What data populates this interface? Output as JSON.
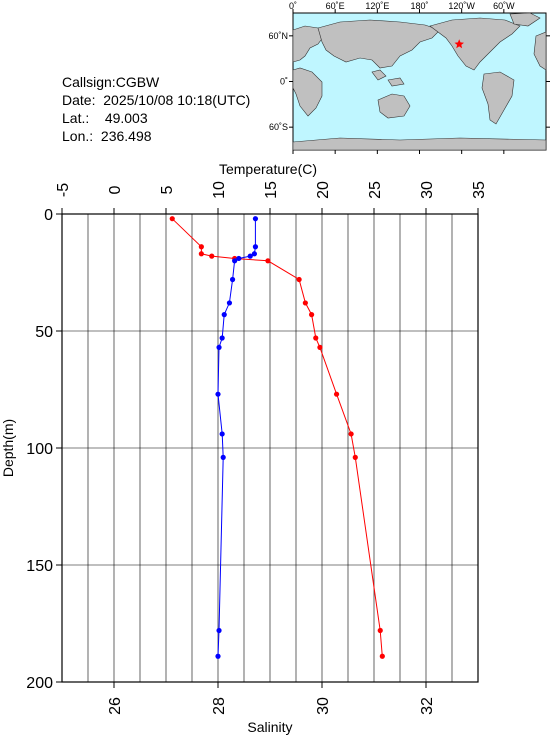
{
  "station": {
    "callsign_label": "Callsign:",
    "callsign": "CGBW",
    "date_label": "Date:",
    "date": "2025/10/08 10:18(UTC)",
    "lat_label": "Lat.:",
    "lat": "49.003",
    "lon_label": "Lon.:",
    "lon": "236.498"
  },
  "map": {
    "lon_ticks": [
      "0˚",
      "60˚E",
      "120˚E",
      "180˚",
      "120˚W",
      "60˚W"
    ],
    "lat_ticks": [
      "60˚N",
      "0˚",
      "60˚S"
    ],
    "marker": {
      "lat": 49.003,
      "lon": 236.498,
      "shape": "star"
    },
    "colors": {
      "ocean": "#bff6ff",
      "land": "#c0c0c0",
      "marker": "#ff0000"
    }
  },
  "chart_data": {
    "type": "line",
    "ylabel": "Depth(m)",
    "ylim": [
      0,
      200
    ],
    "y_ticks": [
      0,
      50,
      100,
      150,
      200
    ],
    "grid": true,
    "x_top": {
      "label": "Temperature(C)",
      "range": [
        -5,
        35
      ],
      "ticks": [
        -5,
        0,
        5,
        10,
        15,
        20,
        25,
        30,
        35
      ]
    },
    "x_bottom": {
      "label": "Salinity",
      "range": [
        25,
        33
      ],
      "ticks": [
        26,
        28,
        30,
        32
      ]
    },
    "series": [
      {
        "color": "#ff0000",
        "axis": "top",
        "points": [
          {
            "x": 5.6,
            "y": 2
          },
          {
            "x": 8.4,
            "y": 14
          },
          {
            "x": 8.4,
            "y": 17
          },
          {
            "x": 9.4,
            "y": 18
          },
          {
            "x": 11.6,
            "y": 19
          },
          {
            "x": 14.8,
            "y": 20
          },
          {
            "x": 17.8,
            "y": 28
          },
          {
            "x": 18.4,
            "y": 38
          },
          {
            "x": 19.0,
            "y": 43
          },
          {
            "x": 19.4,
            "y": 53
          },
          {
            "x": 19.8,
            "y": 57
          },
          {
            "x": 21.4,
            "y": 77
          },
          {
            "x": 22.8,
            "y": 94
          },
          {
            "x": 23.2,
            "y": 104
          },
          {
            "x": 25.6,
            "y": 178
          },
          {
            "x": 25.8,
            "y": 189
          }
        ]
      },
      {
        "color": "#0000ff",
        "axis": "bottom",
        "points": [
          {
            "x": 28.72,
            "y": 2
          },
          {
            "x": 28.72,
            "y": 14
          },
          {
            "x": 28.7,
            "y": 17
          },
          {
            "x": 28.62,
            "y": 18
          },
          {
            "x": 28.4,
            "y": 19
          },
          {
            "x": 28.32,
            "y": 20
          },
          {
            "x": 28.28,
            "y": 28
          },
          {
            "x": 28.22,
            "y": 38
          },
          {
            "x": 28.12,
            "y": 43
          },
          {
            "x": 28.08,
            "y": 53
          },
          {
            "x": 28.02,
            "y": 57
          },
          {
            "x": 28.0,
            "y": 77
          },
          {
            "x": 28.08,
            "y": 94
          },
          {
            "x": 28.1,
            "y": 104
          },
          {
            "x": 28.02,
            "y": 178
          },
          {
            "x": 28.0,
            "y": 189
          }
        ]
      }
    ]
  }
}
